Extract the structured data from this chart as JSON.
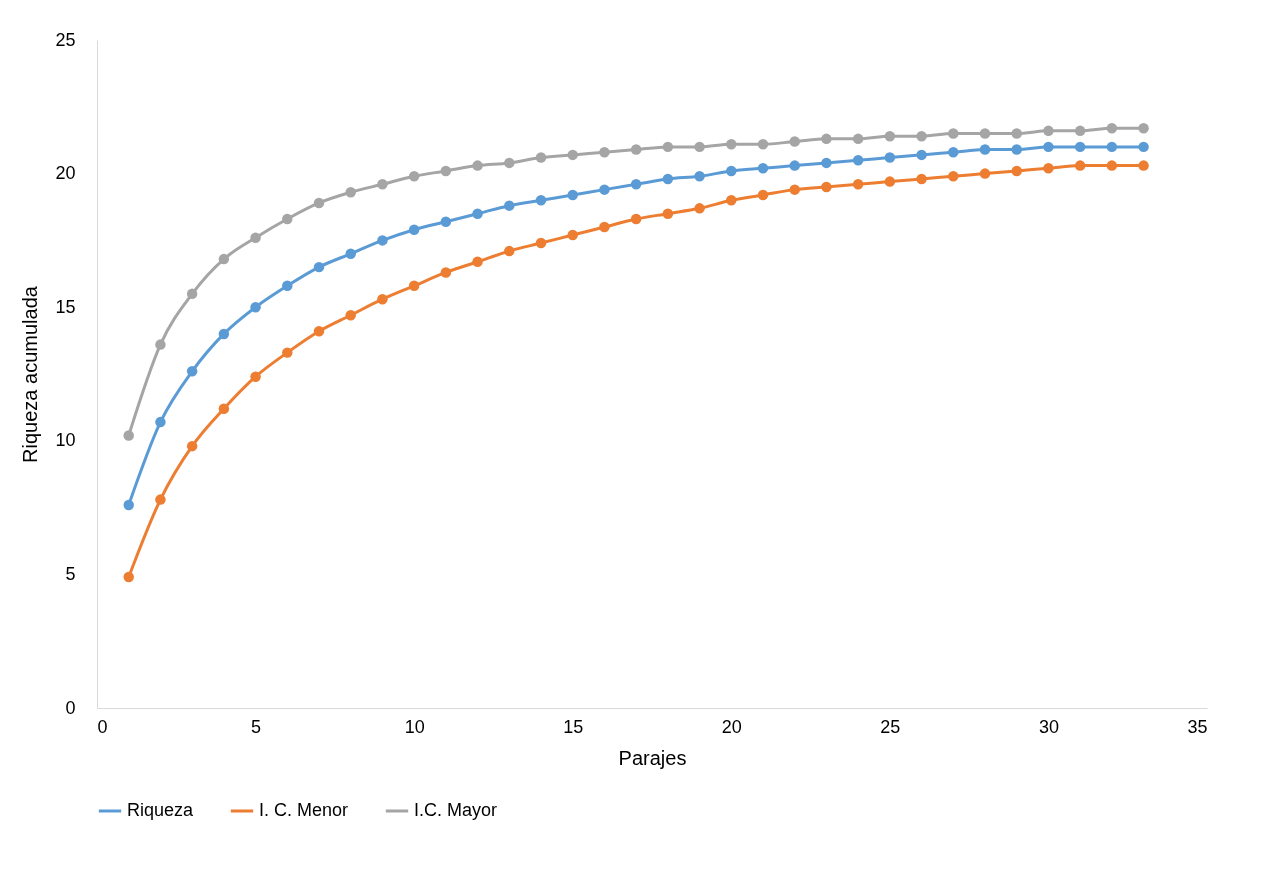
{
  "chart_data": {
    "type": "line",
    "xlabel": "Parajes",
    "ylabel": "Riqueza acumulada",
    "x": [
      1,
      2,
      3,
      4,
      5,
      6,
      7,
      8,
      9,
      10,
      11,
      12,
      13,
      14,
      15,
      16,
      17,
      18,
      19,
      20,
      21,
      22,
      23,
      24,
      25,
      26,
      27,
      28,
      29,
      30,
      31,
      32,
      33
    ],
    "series": [
      {
        "name": "Riqueza",
        "color": "#5b9bd5",
        "values": [
          7.6,
          10.7,
          12.6,
          14.0,
          15.0,
          15.8,
          16.5,
          17.0,
          17.5,
          17.9,
          18.2,
          18.5,
          18.8,
          19.0,
          19.2,
          19.4,
          19.6,
          19.8,
          19.9,
          20.1,
          20.2,
          20.3,
          20.4,
          20.5,
          20.6,
          20.7,
          20.8,
          20.9,
          20.9,
          21.0,
          21.0,
          21.0,
          21.0
        ]
      },
      {
        "name": "I. C. Menor",
        "color": "#ed7d31",
        "values": [
          4.9,
          7.8,
          9.8,
          11.2,
          12.4,
          13.3,
          14.1,
          14.7,
          15.3,
          15.8,
          16.3,
          16.7,
          17.1,
          17.4,
          17.7,
          18.0,
          18.3,
          18.5,
          18.7,
          19.0,
          19.2,
          19.4,
          19.5,
          19.6,
          19.7,
          19.8,
          19.9,
          20.0,
          20.1,
          20.2,
          20.3,
          20.3,
          20.3
        ]
      },
      {
        "name": "I.C. Mayor",
        "color": "#a5a5a5",
        "values": [
          10.2,
          13.6,
          15.5,
          16.8,
          17.6,
          18.3,
          18.9,
          19.3,
          19.6,
          19.9,
          20.1,
          20.3,
          20.4,
          20.6,
          20.7,
          20.8,
          20.9,
          21.0,
          21.0,
          21.1,
          21.1,
          21.2,
          21.3,
          21.3,
          21.4,
          21.4,
          21.5,
          21.5,
          21.5,
          21.6,
          21.6,
          21.7,
          21.7
        ]
      }
    ],
    "xlim": [
      0,
      35
    ],
    "xticks": [
      0,
      5,
      10,
      15,
      20,
      25,
      30,
      35
    ],
    "ylim": [
      0,
      25
    ],
    "yticks": [
      0,
      5,
      10,
      15,
      20,
      25
    ],
    "legend": "bottom",
    "marker": "circle",
    "line_style": "solid"
  }
}
